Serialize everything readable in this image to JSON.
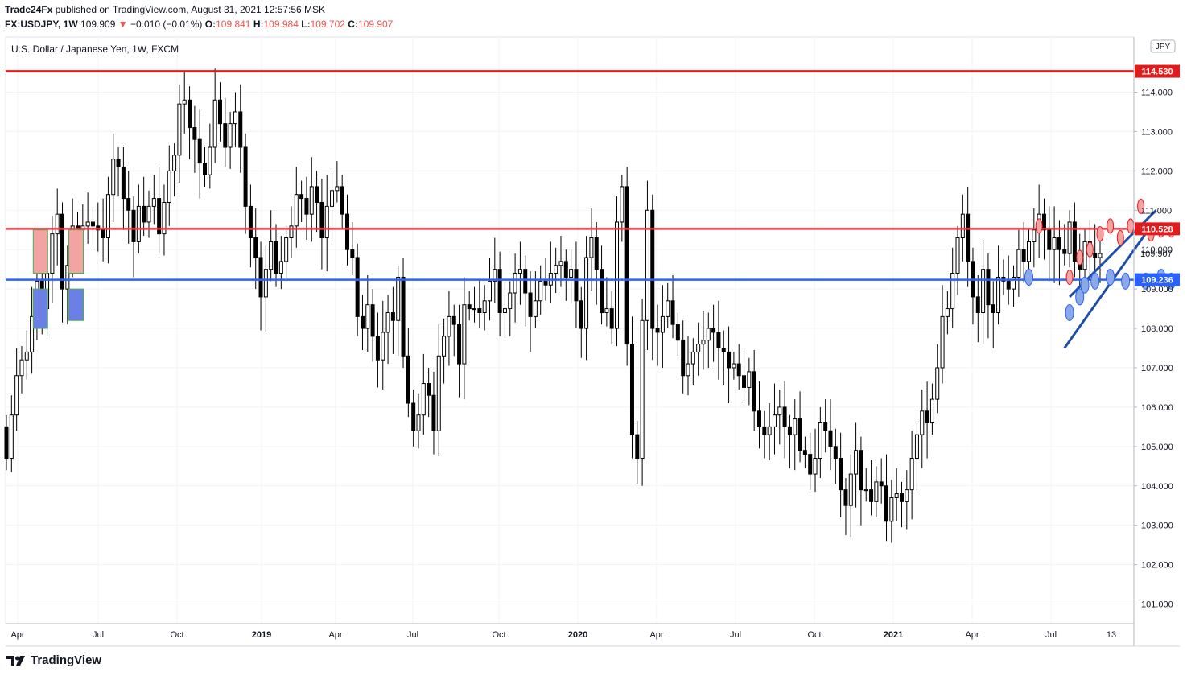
{
  "header": {
    "author": "Trade24Fx",
    "published_text": "published on TradingView.com, August 31, 2021 12:57:56 MSK",
    "symbol": "FX:USDJPY, 1W",
    "last": "109.909",
    "change_arrow": "▼",
    "change": "−0.010 (−0.01%)",
    "o_label": "O:",
    "o_value": "109.841",
    "h_label": "H:",
    "h_value": "109.984",
    "l_label": "L:",
    "l_value": "109.702",
    "c_label": "C:",
    "c_value": "109.907"
  },
  "legend_title": "U.S. Dollar / Japanese Yen, 1W, FXCM",
  "currency_badge": "JPY",
  "footer_brand": "TradingView",
  "colors": {
    "resistance_top": "#e01b1b",
    "resistance_mid": "#f23645",
    "support": "#2962ff",
    "channel": "#1e4fa8",
    "candle_body": "#000000",
    "price_label_bg": "#e01b1b",
    "support_label_bg": "#2962ff"
  },
  "chart_data": {
    "type": "candlestick",
    "title": "U.S. Dollar / Japanese Yen, 1W, FXCM",
    "ylim": [
      100.5,
      115.4
    ],
    "x_ticks": [
      "Apr",
      "Jul",
      "Oct",
      "2019",
      "Apr",
      "Jul",
      "Oct",
      "2020",
      "Apr",
      "Jul",
      "Oct",
      "2021",
      "Apr",
      "Jul",
      "13"
    ],
    "y_ticks": [
      "114.000",
      "113.000",
      "112.000",
      "111.000",
      "110.000",
      "109.000",
      "108.000",
      "107.000",
      "106.000",
      "105.000",
      "104.000",
      "103.000",
      "102.000",
      "101.000"
    ],
    "y_tick_values": [
      114,
      113,
      112,
      111,
      110,
      109,
      108,
      107,
      106,
      105,
      104,
      103,
      102,
      101
    ],
    "levels": [
      {
        "value": 114.53,
        "label": "114.530"
      },
      {
        "value": 110.528,
        "label": "110.528"
      },
      {
        "value": 109.236,
        "label": "109.236"
      }
    ],
    "last_price": {
      "value": 109.907,
      "label": "109.907"
    },
    "closes": [
      104.7,
      105.8,
      106.8,
      107.2,
      107.4,
      108.3,
      109.2,
      108.5,
      109.4,
      110.4,
      110.9,
      109.0,
      109.6,
      110.6,
      110.5,
      110.6,
      110.7,
      110.6,
      110.5,
      110.3,
      111.4,
      112.3,
      112.1,
      111.3,
      111.0,
      110.2,
      111.1,
      110.7,
      111.1,
      111.3,
      110.4,
      111.2,
      112.0,
      112.4,
      113.7,
      113.8,
      113.1,
      112.8,
      112.2,
      111.9,
      112.6,
      113.8,
      113.2,
      112.6,
      113.2,
      113.5,
      112.6,
      111.1,
      110.3,
      109.8,
      108.8,
      109.5,
      110.2,
      109.4,
      109.7,
      110.3,
      110.6,
      111.4,
      111.3,
      110.9,
      111.6,
      111.2,
      110.3,
      111.1,
      111.5,
      111.6,
      110.9,
      110.0,
      109.8,
      108.3,
      108.0,
      108.6,
      107.8,
      107.2,
      107.9,
      108.4,
      108.2,
      109.3,
      107.3,
      106.1,
      105.4,
      105.8,
      106.6,
      106.3,
      105.4,
      107.3,
      107.8,
      108.3,
      108.1,
      107.1,
      108.6,
      108.5,
      108.5,
      108.4,
      108.7,
      109.2,
      109.5,
      108.4,
      108.5,
      108.9,
      109.4,
      109.5,
      108.9,
      108.3,
      108.7,
      109.2,
      109.1,
      109.4,
      109.6,
      109.7,
      109.3,
      109.5,
      108.7,
      108.0,
      109.8,
      110.3,
      109.5,
      108.4,
      108.5,
      108.0,
      110.7,
      111.6,
      107.6,
      105.3,
      104.7,
      108.2,
      111.0,
      108.0,
      107.9,
      108.3,
      108.7,
      108.1,
      107.7,
      106.8,
      107.1,
      107.4,
      107.6,
      107.7,
      108.0,
      107.9,
      107.5,
      107.4,
      107.0,
      107.1,
      106.8,
      106.5,
      106.9,
      105.9,
      105.5,
      105.3,
      105.5,
      105.8,
      106.0,
      105.5,
      105.3,
      105.7,
      104.9,
      104.8,
      104.3,
      104.7,
      105.6,
      105.4,
      105.0,
      104.7,
      103.9,
      103.5,
      104.3,
      104.9,
      103.9,
      103.9,
      103.6,
      104.1,
      104.0,
      103.1,
      103.7,
      103.8,
      103.6,
      103.9,
      104.7,
      105.3,
      105.9,
      105.6,
      106.2,
      107.0,
      108.3,
      108.5,
      109.4,
      110.3,
      110.9,
      109.7,
      108.8,
      108.4,
      109.5,
      108.6,
      108.4,
      109.3,
      109.2,
      109.0,
      109.3,
      110.0,
      109.7,
      110.2,
      110.5,
      110.9,
      110.5,
      110.0,
      110.3,
      110.0,
      109.9,
      110.7,
      109.7,
      109.5,
      110.2,
      109.9,
      109.8,
      109.9
    ]
  }
}
